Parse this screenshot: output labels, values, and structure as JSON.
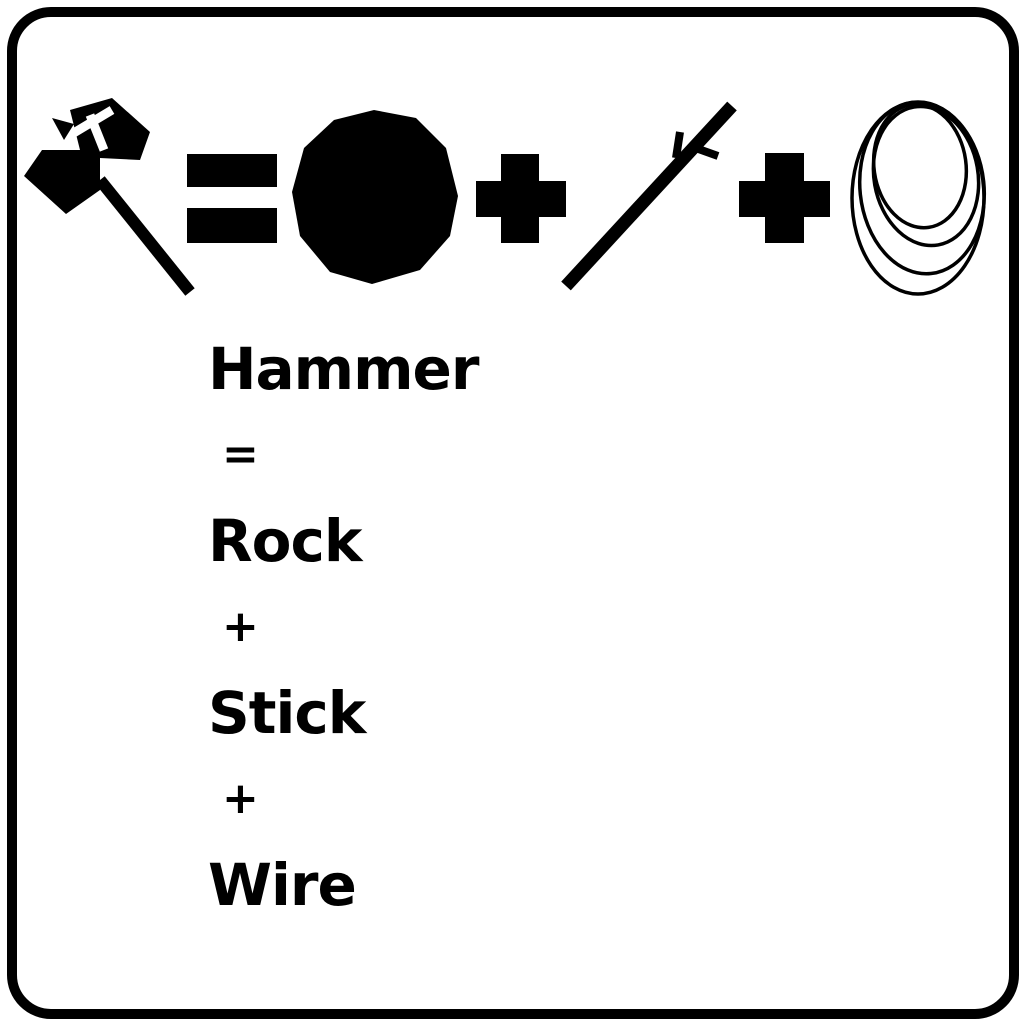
{
  "recipe": {
    "icons": {
      "result": "hammer-icon",
      "equals": "equals-icon",
      "ingredient_1": "rock-icon",
      "plus": "plus-icon",
      "ingredient_2": "stick-icon",
      "ingredient_3": "wire-icon"
    },
    "lines": {
      "result": "Hammer",
      "equals": "=",
      "ingredient_1": "Rock",
      "plus_1": "+",
      "ingredient_2": "Stick",
      "plus_2": "+",
      "ingredient_3": "Wire"
    }
  },
  "colors": {
    "ink": "#000000",
    "background": "#ffffff"
  }
}
